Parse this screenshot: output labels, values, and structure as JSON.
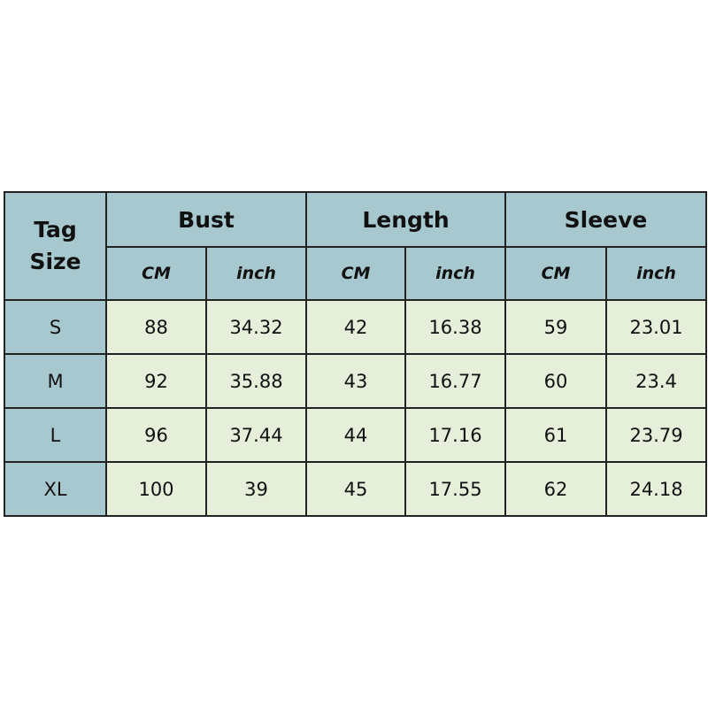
{
  "table": {
    "corner": "Tag Size",
    "groups": [
      "Bust",
      "Length",
      "Sleeve"
    ],
    "units": [
      "CM",
      "inch",
      "CM",
      "inch",
      "CM",
      "inch"
    ],
    "rows": [
      {
        "size": "S",
        "values": [
          88,
          34.32,
          42,
          16.38,
          59,
          23.01
        ]
      },
      {
        "size": "M",
        "values": [
          92,
          35.88,
          43,
          16.77,
          60,
          23.4
        ]
      },
      {
        "size": "L",
        "values": [
          96,
          37.44,
          44,
          17.16,
          61,
          23.79
        ]
      },
      {
        "size": "XL",
        "values": [
          100,
          39,
          45,
          17.55,
          62,
          24.18
        ]
      }
    ]
  }
}
